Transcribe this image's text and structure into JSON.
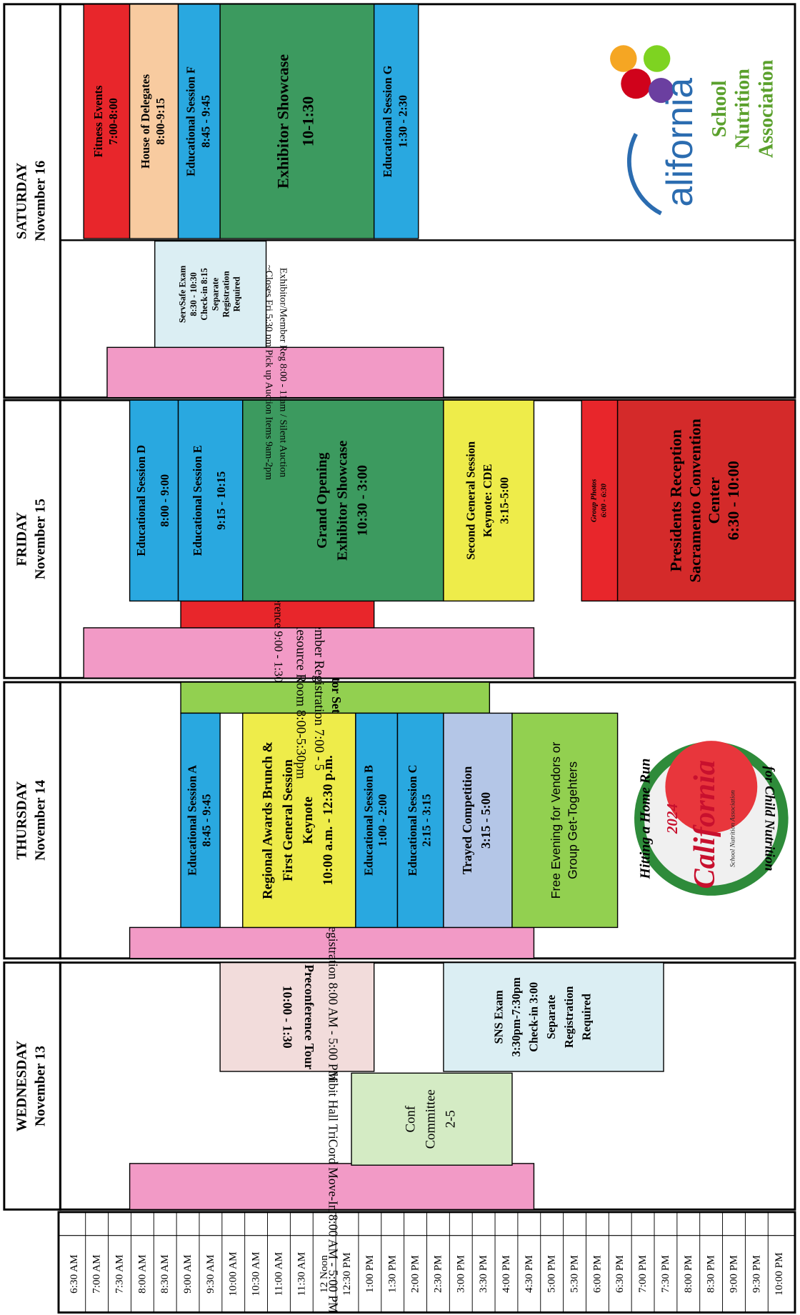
{
  "time_slots": [
    "6:30 AM",
    "7:00 AM",
    "7:30 AM",
    "8:00 AM",
    "8:30 AM",
    "9:00 AM",
    "9:30 AM",
    "10:00 AM",
    "10:30 AM",
    "11:00 AM",
    "11:30 AM",
    "12 Noon",
    "12:30 PM",
    "1:00 PM",
    "1:30 PM",
    "2:00 PM",
    "2:30 PM",
    "3:00 PM",
    "3:30 PM",
    "4:00 PM",
    "4:30 PM",
    "5:00 PM",
    "5:30 PM",
    "6:00 PM",
    "6:30 PM",
    "7:00 PM",
    "7:30 PM",
    "8:00 PM",
    "8:30 PM",
    "9:00 PM",
    "9:30 PM",
    "10:00 PM"
  ],
  "days": [
    {
      "name": "WEDNESDAY",
      "date": "November 13",
      "events": [
        {
          "lines": [
            "Exhibit Hall TriCord Move-In  8:00 AM - 5:00 PM"
          ]
        },
        {
          "lines": [
            "Conf",
            "Committee",
            "2-5"
          ]
        },
        {
          "lines": [
            "Preconference Tour",
            "10:00 - 1:30"
          ]
        },
        {
          "lines": [
            "SNS Exam",
            "3:30pm-7:30pm",
            "Check-in 3:00",
            "Separate",
            "Registration",
            "Required"
          ]
        }
      ]
    },
    {
      "name": "THURSDAY",
      "date": "November 14",
      "events": [
        {
          "lines": [
            "Members & Exhibitor Registration  8:00 AM - 5:00 PM"
          ]
        },
        {
          "lines": [
            "Exhibitor Set-Up 9-5"
          ]
        },
        {
          "lines": [
            "Educational Session A",
            "8:45 - 9:45"
          ]
        },
        {
          "lines": [
            "Regional Awards Brunch &",
            "First General Session",
            "Keynote",
            "10:00 a.m. - 12:30 p.m."
          ]
        },
        {
          "lines": [
            "Educational Session B",
            "1:00 - 2:00"
          ]
        },
        {
          "lines": [
            "Educational Session C",
            "2:15 - 3:15"
          ]
        },
        {
          "lines": [
            "Trayed Competition",
            "3:15 - 5:00"
          ]
        },
        {
          "lines": [
            "Free Evening for Vendors or",
            "Group Get-Togehters"
          ]
        }
      ]
    },
    {
      "name": "FRIDAY",
      "date": "November 15",
      "events": [
        {
          "lines": [
            "Exhibitor and Member Registration 7:00 - 5",
            "Silent Auction & Resource Room 8:00-5:30pm"
          ]
        },
        {
          "lines": [
            "NAC Conference  9:00 - 1:30"
          ]
        },
        {
          "lines": [
            "Educational Session D",
            "8:00 - 9:00"
          ]
        },
        {
          "lines": [
            "Educational Session  E",
            "9:15 - 10:15"
          ]
        },
        {
          "lines": [
            "Grand Opening",
            "Exhibitor Showcase",
            "10:30 - 3:00"
          ]
        },
        {
          "lines": [
            "Second General Session",
            "Keynote: CDE",
            "3:15-5:00"
          ]
        },
        {
          "lines": [
            "Group Photos",
            "6:00 - 6:30"
          ]
        },
        {
          "lines": [
            "Presidents Reception",
            "Sacramento Convention",
            "Center",
            "6:30 - 10:00"
          ]
        }
      ]
    },
    {
      "name": "SATURDAY",
      "date": "November 16",
      "events": [
        {
          "lines": [
            "Exhibitor/Member Reg 8:00 - 11am / Silent Auction",
            "~Closes Fri 5:30 pm  Pick up Auction Items 9am-2pm"
          ]
        },
        {
          "lines": [
            "ServSafe Exam",
            "8:30 - 10:30",
            "Check-in 8:15",
            "Separate",
            "Registration",
            "Required"
          ]
        },
        {
          "lines": [
            "Fitness Events",
            "7:00-8:00"
          ]
        },
        {
          "lines": [
            "House of Delegates",
            "8:00-9:15"
          ]
        },
        {
          "lines": [
            "Educational Session F",
            "8:45 - 9:45"
          ]
        },
        {
          "lines": [
            "Exhibitor Showcase",
            "10-1:30"
          ]
        },
        {
          "lines": [
            "Educational Session G",
            "1:30 - 2:30"
          ]
        }
      ]
    }
  ],
  "logos": {
    "conference": [
      "Hitting a Home Run",
      "2024",
      "California",
      "School Nutrition Association",
      "for Child Nutrition"
    ],
    "association": [
      "alifornia",
      "School",
      "Nutrition",
      "Association"
    ]
  }
}
